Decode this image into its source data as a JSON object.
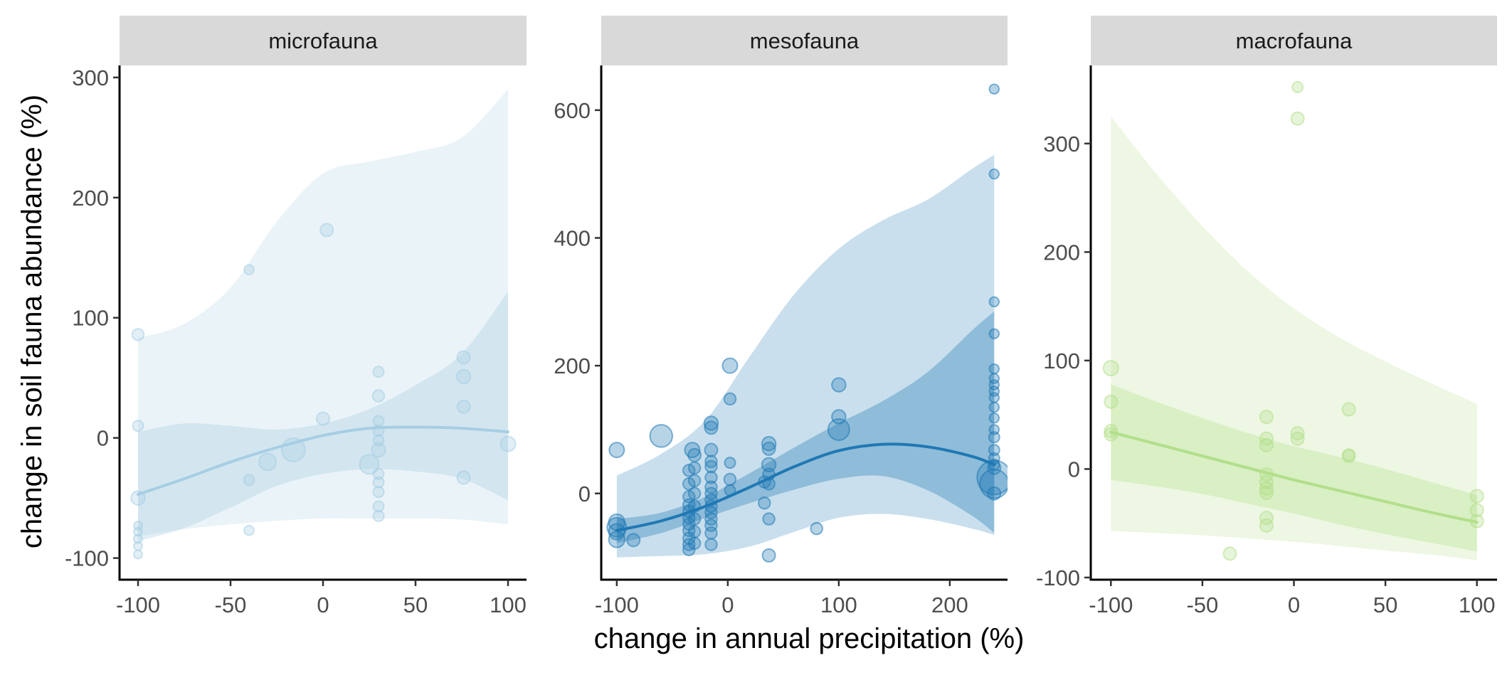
{
  "figure": {
    "xlabel": "change in annual precipitation (%)",
    "ylabel": "change in soil fauna abundance (%)"
  },
  "chart_data": [
    {
      "type": "scatter",
      "title": "microfauna",
      "color": "#a6cee3",
      "xlim": [
        -110,
        110
      ],
      "ylim": [
        -118,
        310
      ],
      "x_ticks": [
        -100,
        -50,
        0,
        50,
        100
      ],
      "y_ticks": [
        -100,
        0,
        100,
        200,
        300
      ],
      "fit_line": {
        "x": [
          -100,
          -75,
          -50,
          -25,
          0,
          25,
          50,
          75,
          100
        ],
        "y": [
          -47,
          -34,
          -20,
          -8,
          2,
          8,
          9,
          8,
          5
        ]
      },
      "ci_inner": {
        "x": [
          -100,
          -75,
          -50,
          -25,
          0,
          25,
          50,
          75,
          100
        ],
        "upper": [
          5,
          12,
          10,
          7,
          12,
          24,
          44,
          70,
          122
        ],
        "lower": [
          -86,
          -75,
          -58,
          -40,
          -30,
          -26,
          -28,
          -34,
          -52
        ]
      },
      "ci_outer": {
        "x": [
          -100,
          -75,
          -50,
          -25,
          0,
          25,
          50,
          75,
          100
        ],
        "upper": [
          83,
          95,
          125,
          180,
          220,
          230,
          238,
          250,
          290
        ],
        "lower": [
          -82,
          -76,
          -72,
          -69,
          -67,
          -67,
          -67,
          -68,
          -72
        ]
      },
      "points": [
        {
          "x": -100,
          "y": 86,
          "s": 1.1
        },
        {
          "x": -100,
          "y": 10,
          "s": 1.0
        },
        {
          "x": -100,
          "y": -50,
          "s": 1.3
        },
        {
          "x": -100,
          "y": -73,
          "s": 0.8
        },
        {
          "x": -100,
          "y": -78,
          "s": 0.8
        },
        {
          "x": -100,
          "y": -84,
          "s": 0.8
        },
        {
          "x": -100,
          "y": -90,
          "s": 0.8
        },
        {
          "x": -100,
          "y": -97,
          "s": 0.8
        },
        {
          "x": -40,
          "y": 140,
          "s": 0.9
        },
        {
          "x": -40,
          "y": -35,
          "s": 1.0
        },
        {
          "x": -40,
          "y": -77,
          "s": 0.9
        },
        {
          "x": -30,
          "y": -20,
          "s": 1.6
        },
        {
          "x": -16,
          "y": -10,
          "s": 2.2
        },
        {
          "x": 0,
          "y": 16,
          "s": 1.2
        },
        {
          "x": 2,
          "y": 173,
          "s": 1.2
        },
        {
          "x": 25,
          "y": -22,
          "s": 1.8
        },
        {
          "x": 30,
          "y": 55,
          "s": 1.0
        },
        {
          "x": 30,
          "y": 35,
          "s": 1.1
        },
        {
          "x": 30,
          "y": 14,
          "s": 1.0
        },
        {
          "x": 30,
          "y": 6,
          "s": 1.0
        },
        {
          "x": 30,
          "y": -2,
          "s": 1.0
        },
        {
          "x": 30,
          "y": -10,
          "s": 1.3
        },
        {
          "x": 30,
          "y": -30,
          "s": 1.0
        },
        {
          "x": 30,
          "y": -37,
          "s": 1.0
        },
        {
          "x": 30,
          "y": -45,
          "s": 1.0
        },
        {
          "x": 30,
          "y": -57,
          "s": 1.0
        },
        {
          "x": 30,
          "y": -65,
          "s": 1.0
        },
        {
          "x": 76,
          "y": 67,
          "s": 1.2
        },
        {
          "x": 76,
          "y": 51,
          "s": 1.3
        },
        {
          "x": 76,
          "y": 26,
          "s": 1.2
        },
        {
          "x": 76,
          "y": -33,
          "s": 1.2
        },
        {
          "x": 100,
          "y": -5,
          "s": 1.4
        }
      ]
    },
    {
      "type": "scatter",
      "title": "mesofauna",
      "color": "#1f78b4",
      "xlim": [
        -114,
        252
      ],
      "ylim": [
        -135,
        670
      ],
      "x_ticks": [
        -100,
        0,
        100,
        200
      ],
      "y_ticks": [
        0,
        200,
        400,
        600
      ],
      "fit_line": {
        "x": [
          -100,
          -60,
          -20,
          20,
          60,
          100,
          140,
          180,
          220,
          240
        ],
        "y": [
          -58,
          -43,
          -20,
          10,
          42,
          67,
          77,
          73,
          58,
          45
        ]
      },
      "ci_inner": {
        "x": [
          -100,
          -60,
          -20,
          20,
          60,
          100,
          140,
          180,
          220,
          240
        ],
        "upper": [
          -40,
          -30,
          -5,
          32,
          72,
          110,
          145,
          190,
          255,
          285
        ],
        "lower": [
          -78,
          -62,
          -38,
          -15,
          6,
          23,
          27,
          5,
          -35,
          -62
        ]
      },
      "ci_outer": {
        "x": [
          -100,
          -60,
          -20,
          20,
          60,
          100,
          140,
          180,
          220,
          240
        ],
        "upper": [
          28,
          62,
          115,
          215,
          312,
          383,
          428,
          460,
          508,
          530
        ],
        "lower": [
          -100,
          -98,
          -95,
          -83,
          -60,
          -38,
          -32,
          -40,
          -55,
          -65
        ]
      },
      "points": [
        {
          "x": -100,
          "y": 68,
          "s": 1.4
        },
        {
          "x": -100,
          "y": -45,
          "s": 1.5
        },
        {
          "x": -100,
          "y": -53,
          "s": 1.8
        },
        {
          "x": -100,
          "y": -60,
          "s": 1.5
        },
        {
          "x": -100,
          "y": -72,
          "s": 1.5
        },
        {
          "x": -85,
          "y": -73,
          "s": 1.2
        },
        {
          "x": -60,
          "y": 90,
          "s": 2.1
        },
        {
          "x": -35,
          "y": 36,
          "s": 1.1
        },
        {
          "x": -35,
          "y": 15,
          "s": 1.1
        },
        {
          "x": -35,
          "y": -5,
          "s": 1.1
        },
        {
          "x": -35,
          "y": -18,
          "s": 1.1
        },
        {
          "x": -35,
          "y": -28,
          "s": 1.1
        },
        {
          "x": -35,
          "y": -38,
          "s": 1.1
        },
        {
          "x": -35,
          "y": -48,
          "s": 1.1
        },
        {
          "x": -35,
          "y": -58,
          "s": 1.1
        },
        {
          "x": -35,
          "y": -70,
          "s": 1.1
        },
        {
          "x": -35,
          "y": -80,
          "s": 1.1
        },
        {
          "x": -35,
          "y": -88,
          "s": 1.1
        },
        {
          "x": -32,
          "y": 68,
          "s": 1.4
        },
        {
          "x": -30,
          "y": 60,
          "s": 1.2
        },
        {
          "x": -30,
          "y": 40,
          "s": 1.1
        },
        {
          "x": -30,
          "y": 20,
          "s": 1.1
        },
        {
          "x": -30,
          "y": 0,
          "s": 1.1
        },
        {
          "x": -30,
          "y": -20,
          "s": 1.1
        },
        {
          "x": -30,
          "y": -40,
          "s": 1.1
        },
        {
          "x": -30,
          "y": -60,
          "s": 1.1
        },
        {
          "x": -30,
          "y": -78,
          "s": 1.1
        },
        {
          "x": -15,
          "y": 110,
          "s": 1.3
        },
        {
          "x": -15,
          "y": 103,
          "s": 1.2
        },
        {
          "x": -15,
          "y": 68,
          "s": 1.2
        },
        {
          "x": -15,
          "y": 50,
          "s": 1.1
        },
        {
          "x": -15,
          "y": 42,
          "s": 1.1
        },
        {
          "x": -15,
          "y": 25,
          "s": 1.1
        },
        {
          "x": -15,
          "y": 10,
          "s": 1.1
        },
        {
          "x": -15,
          "y": 0,
          "s": 1.1
        },
        {
          "x": -15,
          "y": -10,
          "s": 1.1
        },
        {
          "x": -15,
          "y": -20,
          "s": 1.1
        },
        {
          "x": -15,
          "y": -30,
          "s": 1.1
        },
        {
          "x": -15,
          "y": -40,
          "s": 1.1
        },
        {
          "x": -15,
          "y": -50,
          "s": 1.1
        },
        {
          "x": -15,
          "y": -62,
          "s": 1.1
        },
        {
          "x": -15,
          "y": -80,
          "s": 1.1
        },
        {
          "x": 2,
          "y": 200,
          "s": 1.4
        },
        {
          "x": 2,
          "y": 148,
          "s": 1.1
        },
        {
          "x": 2,
          "y": 48,
          "s": 1.0
        },
        {
          "x": 2,
          "y": 22,
          "s": 1.1
        },
        {
          "x": 2,
          "y": 5,
          "s": 1.0
        },
        {
          "x": 33,
          "y": 18,
          "s": 1.1
        },
        {
          "x": 33,
          "y": -15,
          "s": 1.1
        },
        {
          "x": 37,
          "y": 78,
          "s": 1.3
        },
        {
          "x": 37,
          "y": 70,
          "s": 1.2
        },
        {
          "x": 37,
          "y": 45,
          "s": 1.3
        },
        {
          "x": 37,
          "y": 30,
          "s": 1.1
        },
        {
          "x": 37,
          "y": 15,
          "s": 1.1
        },
        {
          "x": 37,
          "y": -40,
          "s": 1.1
        },
        {
          "x": 37,
          "y": -97,
          "s": 1.2
        },
        {
          "x": 80,
          "y": -55,
          "s": 1.1
        },
        {
          "x": 100,
          "y": 170,
          "s": 1.3
        },
        {
          "x": 100,
          "y": 120,
          "s": 1.3
        },
        {
          "x": 100,
          "y": 100,
          "s": 2.0
        },
        {
          "x": 240,
          "y": 633,
          "s": 0.9
        },
        {
          "x": 240,
          "y": 500,
          "s": 0.9
        },
        {
          "x": 240,
          "y": 300,
          "s": 0.9
        },
        {
          "x": 240,
          "y": 250,
          "s": 0.9
        },
        {
          "x": 240,
          "y": 195,
          "s": 0.9
        },
        {
          "x": 240,
          "y": 180,
          "s": 0.9
        },
        {
          "x": 240,
          "y": 170,
          "s": 0.9
        },
        {
          "x": 240,
          "y": 160,
          "s": 0.9
        },
        {
          "x": 240,
          "y": 150,
          "s": 0.9
        },
        {
          "x": 240,
          "y": 135,
          "s": 0.9
        },
        {
          "x": 240,
          "y": 118,
          "s": 0.9
        },
        {
          "x": 240,
          "y": 100,
          "s": 0.9
        },
        {
          "x": 240,
          "y": 88,
          "s": 1.0
        },
        {
          "x": 240,
          "y": 68,
          "s": 1.0
        },
        {
          "x": 240,
          "y": 55,
          "s": 1.0
        },
        {
          "x": 240,
          "y": 45,
          "s": 1.0
        },
        {
          "x": 240,
          "y": 40,
          "s": 1.2
        },
        {
          "x": 240,
          "y": 25,
          "s": 3.2
        },
        {
          "x": 240,
          "y": 15,
          "s": 2.7
        },
        {
          "x": 240,
          "y": 0,
          "s": 1.2
        }
      ]
    },
    {
      "type": "scatter",
      "title": "macrofauna",
      "color": "#b2df8a",
      "xlim": [
        -111,
        111
      ],
      "ylim": [
        -102,
        372
      ],
      "x_ticks": [
        -100,
        -50,
        0,
        50,
        100
      ],
      "y_ticks": [
        -100,
        0,
        100,
        200,
        300
      ],
      "fit_line": {
        "x": [
          -100,
          -75,
          -50,
          -25,
          0,
          25,
          50,
          75,
          100
        ],
        "y": [
          34,
          23,
          12,
          1,
          -10,
          -20,
          -30,
          -40,
          -49
        ]
      },
      "ci_inner": {
        "x": [
          -100,
          -75,
          -50,
          -25,
          0,
          25,
          50,
          75,
          100
        ],
        "upper": [
          78,
          62,
          47,
          33,
          21,
          11,
          0,
          -12,
          -24
        ],
        "lower": [
          -10,
          -16,
          -23,
          -32,
          -41,
          -51,
          -60,
          -68,
          -76
        ]
      },
      "ci_outer": {
        "x": [
          -100,
          -75,
          -50,
          -25,
          0,
          25,
          50,
          75,
          100
        ],
        "upper": [
          325,
          272,
          224,
          182,
          148,
          121,
          99,
          79,
          60
        ],
        "lower": [
          -57,
          -59,
          -61,
          -64,
          -67,
          -71,
          -75,
          -79,
          -84
        ]
      },
      "points": [
        {
          "x": -100,
          "y": 93,
          "s": 1.4
        },
        {
          "x": -100,
          "y": 62,
          "s": 1.2
        },
        {
          "x": -100,
          "y": 35,
          "s": 1.2
        },
        {
          "x": -100,
          "y": 32,
          "s": 1.2
        },
        {
          "x": -35,
          "y": -78,
          "s": 1.2
        },
        {
          "x": -15,
          "y": 48,
          "s": 1.2
        },
        {
          "x": -15,
          "y": 28,
          "s": 1.2
        },
        {
          "x": -15,
          "y": 22,
          "s": 1.2
        },
        {
          "x": -15,
          "y": -5,
          "s": 1.2
        },
        {
          "x": -15,
          "y": -12,
          "s": 1.2
        },
        {
          "x": -15,
          "y": -18,
          "s": 1.2
        },
        {
          "x": -15,
          "y": -22,
          "s": 1.2
        },
        {
          "x": -15,
          "y": -45,
          "s": 1.2
        },
        {
          "x": -15,
          "y": -52,
          "s": 1.2
        },
        {
          "x": 2,
          "y": 352,
          "s": 1.0
        },
        {
          "x": 2,
          "y": 323,
          "s": 1.2
        },
        {
          "x": 2,
          "y": 33,
          "s": 1.2
        },
        {
          "x": 2,
          "y": 28,
          "s": 1.2
        },
        {
          "x": 30,
          "y": 55,
          "s": 1.2
        },
        {
          "x": 30,
          "y": 12,
          "s": 1.2
        },
        {
          "x": 30,
          "y": 13,
          "s": 1.1
        },
        {
          "x": 100,
          "y": -25,
          "s": 1.2
        },
        {
          "x": 100,
          "y": -38,
          "s": 1.2
        },
        {
          "x": 100,
          "y": -48,
          "s": 1.2
        }
      ]
    }
  ]
}
